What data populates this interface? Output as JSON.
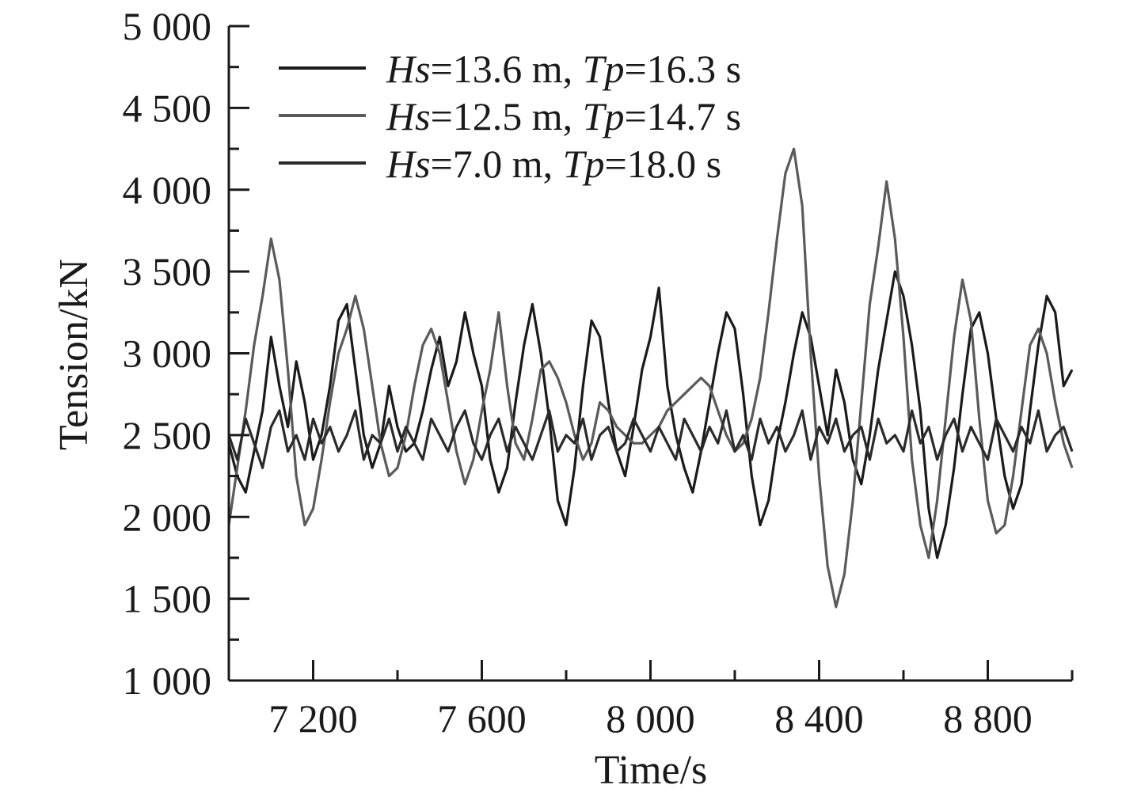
{
  "chart_data": {
    "type": "line",
    "title": "",
    "xlabel": "Time/s",
    "ylabel": "Tension/kN",
    "xlim": [
      7000,
      9000
    ],
    "ylim": [
      1000,
      5000
    ],
    "x_ticks": [
      7200,
      7600,
      8000,
      8400,
      8800
    ],
    "x_tick_labels": [
      "7 200",
      "7 600",
      "8 000",
      "8 400",
      "8 800"
    ],
    "y_ticks": [
      1000,
      1500,
      2000,
      2500,
      3000,
      3500,
      4000,
      4500,
      5000
    ],
    "y_tick_labels": [
      "1 000",
      "1 500",
      "2 000",
      "2 500",
      "3 000",
      "3 500",
      "4 000",
      "4 500",
      "5 000"
    ],
    "legend_position": "top",
    "grid": false,
    "series": [
      {
        "hs_label": "Hs",
        "hs_value": "=13.6 m, ",
        "tp_label": "Tp",
        "tp_value": "=16.3 s",
        "color": "#1a1a1a",
        "x": [
          7000,
          7020,
          7040,
          7060,
          7080,
          7100,
          7120,
          7140,
          7160,
          7180,
          7200,
          7220,
          7240,
          7260,
          7280,
          7300,
          7320,
          7340,
          7360,
          7380,
          7400,
          7420,
          7440,
          7460,
          7480,
          7500,
          7520,
          7540,
          7560,
          7580,
          7600,
          7620,
          7640,
          7660,
          7680,
          7700,
          7720,
          7740,
          7760,
          7780,
          7800,
          7820,
          7840,
          7860,
          7880,
          7900,
          7920,
          7940,
          7960,
          7980,
          8000,
          8020,
          8040,
          8060,
          8080,
          8100,
          8120,
          8140,
          8160,
          8180,
          8200,
          8220,
          8240,
          8260,
          8280,
          8300,
          8320,
          8340,
          8360,
          8380,
          8400,
          8420,
          8440,
          8460,
          8480,
          8500,
          8520,
          8540,
          8560,
          8580,
          8600,
          8620,
          8640,
          8660,
          8680,
          8700,
          8720,
          8740,
          8760,
          8780,
          8800,
          8820,
          8840,
          8860,
          8880,
          8900,
          8920,
          8940,
          8960,
          8980,
          9000
        ],
        "values": [
          2450,
          2250,
          2150,
          2400,
          2650,
          3100,
          2800,
          2550,
          2950,
          2700,
          2350,
          2500,
          2800,
          3200,
          3300,
          2900,
          2500,
          2300,
          2450,
          2800,
          2550,
          2400,
          2450,
          2650,
          2900,
          3100,
          2800,
          2950,
          3250,
          3000,
          2800,
          2350,
          2150,
          2300,
          2700,
          3050,
          3300,
          3000,
          2600,
          2100,
          1950,
          2300,
          2800,
          3200,
          3100,
          2700,
          2400,
          2250,
          2550,
          2900,
          3100,
          3400,
          2800,
          2500,
          2300,
          2150,
          2400,
          2700,
          3000,
          3250,
          3150,
          2750,
          2250,
          1950,
          2100,
          2450,
          2700,
          3000,
          3250,
          3100,
          2800,
          2500,
          2900,
          2700,
          2350,
          2200,
          2500,
          2900,
          3200,
          3500,
          3350,
          3050,
          2650,
          2050,
          1750,
          1950,
          2300,
          2750,
          3150,
          3250,
          3000,
          2600,
          2250,
          2050,
          2200,
          2650,
          3050,
          3350,
          3250,
          2800,
          2900
        ]
      },
      {
        "hs_label": "Hs",
        "hs_value": "=12.5 m, ",
        "tp_label": "Tp",
        "tp_value": "=14.7 s",
        "color": "#5a5a5a",
        "x": [
          7000,
          7020,
          7040,
          7060,
          7080,
          7100,
          7120,
          7140,
          7160,
          7180,
          7200,
          7220,
          7240,
          7260,
          7280,
          7300,
          7320,
          7340,
          7360,
          7380,
          7400,
          7420,
          7440,
          7460,
          7480,
          7500,
          7520,
          7540,
          7560,
          7580,
          7600,
          7620,
          7640,
          7660,
          7680,
          7700,
          7720,
          7740,
          7760,
          7780,
          7800,
          7820,
          7840,
          7860,
          7880,
          7900,
          7920,
          7940,
          7960,
          7980,
          8000,
          8020,
          8040,
          8060,
          8080,
          8100,
          8120,
          8140,
          8160,
          8180,
          8200,
          8220,
          8240,
          8260,
          8280,
          8300,
          8320,
          8340,
          8360,
          8380,
          8400,
          8420,
          8440,
          8460,
          8480,
          8500,
          8520,
          8540,
          8560,
          8580,
          8600,
          8620,
          8640,
          8660,
          8680,
          8700,
          8720,
          8740,
          8760,
          8780,
          8800,
          8820,
          8840,
          8860,
          8880,
          8900,
          8920,
          8940,
          8960,
          8980,
          9000
        ],
        "values": [
          1950,
          2300,
          2650,
          3050,
          3350,
          3700,
          3450,
          2900,
          2250,
          1950,
          2050,
          2350,
          2700,
          3000,
          3150,
          3350,
          3150,
          2800,
          2450,
          2250,
          2300,
          2500,
          2800,
          3050,
          3150,
          3000,
          2700,
          2400,
          2200,
          2350,
          2650,
          2900,
          3250,
          2800,
          2450,
          2350,
          2600,
          2900,
          2950,
          2850,
          2700,
          2500,
          2350,
          2450,
          2700,
          2650,
          2550,
          2500,
          2450,
          2450,
          2500,
          2550,
          2650,
          2700,
          2750,
          2800,
          2850,
          2800,
          2650,
          2500,
          2400,
          2450,
          2600,
          2850,
          3250,
          3700,
          4100,
          4250,
          3900,
          3000,
          2250,
          1700,
          1450,
          1650,
          2100,
          2700,
          3300,
          3650,
          4050,
          3700,
          3100,
          2350,
          1950,
          1750,
          2100,
          2600,
          3100,
          3450,
          3200,
          2600,
          2100,
          1900,
          1950,
          2250,
          2650,
          3050,
          3150,
          3000,
          2700,
          2450,
          2300
        ]
      },
      {
        "hs_label": "Hs",
        "hs_value": "=7.0 m, ",
        "tp_label": "Tp",
        "tp_value": "=18.0 s",
        "color": "#2a2a2a",
        "x": [
          7000,
          7020,
          7040,
          7060,
          7080,
          7100,
          7120,
          7140,
          7160,
          7180,
          7200,
          7220,
          7240,
          7260,
          7280,
          7300,
          7320,
          7340,
          7360,
          7380,
          7400,
          7420,
          7440,
          7460,
          7480,
          7500,
          7520,
          7540,
          7560,
          7580,
          7600,
          7620,
          7640,
          7660,
          7680,
          7700,
          7720,
          7740,
          7760,
          7780,
          7800,
          7820,
          7840,
          7860,
          7880,
          7900,
          7920,
          7940,
          7960,
          7980,
          8000,
          8020,
          8040,
          8060,
          8080,
          8100,
          8120,
          8140,
          8160,
          8180,
          8200,
          8220,
          8240,
          8260,
          8280,
          8300,
          8320,
          8340,
          8360,
          8380,
          8400,
          8420,
          8440,
          8460,
          8480,
          8500,
          8520,
          8540,
          8560,
          8580,
          8600,
          8620,
          8640,
          8660,
          8680,
          8700,
          8720,
          8740,
          8760,
          8780,
          8800,
          8820,
          8840,
          8860,
          8880,
          8900,
          8920,
          8940,
          8960,
          8980,
          9000
        ],
        "values": [
          2500,
          2350,
          2600,
          2450,
          2300,
          2550,
          2650,
          2400,
          2500,
          2350,
          2600,
          2450,
          2550,
          2400,
          2500,
          2650,
          2350,
          2500,
          2450,
          2600,
          2400,
          2550,
          2450,
          2350,
          2600,
          2500,
          2400,
          2550,
          2650,
          2450,
          2350,
          2500,
          2600,
          2400,
          2550,
          2450,
          2350,
          2500,
          2650,
          2400,
          2500,
          2450,
          2600,
          2350,
          2500,
          2550,
          2400,
          2450,
          2600,
          2500,
          2400,
          2550,
          2450,
          2350,
          2600,
          2500,
          2400,
          2550,
          2450,
          2650,
          2400,
          2500,
          2350,
          2600,
          2450,
          2550,
          2400,
          2500,
          2650,
          2350,
          2550,
          2450,
          2600,
          2400,
          2500,
          2550,
          2350,
          2600,
          2450,
          2500,
          2400,
          2650,
          2450,
          2550,
          2350,
          2500,
          2600,
          2400,
          2550,
          2450,
          2350,
          2600,
          2500,
          2400,
          2550,
          2450,
          2650,
          2400,
          2500,
          2550,
          2400
        ]
      }
    ]
  }
}
